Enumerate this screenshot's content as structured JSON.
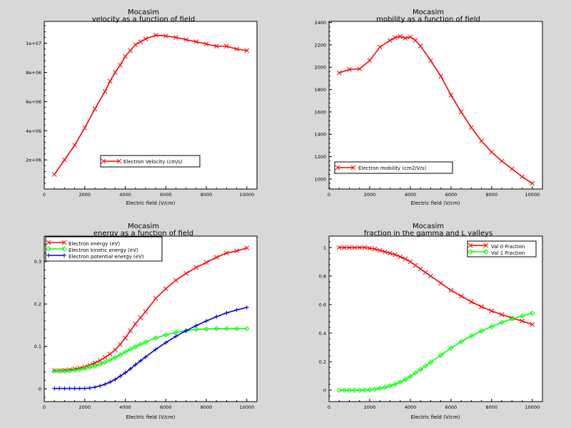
{
  "chart_data": [
    {
      "type": "line",
      "title": "Mocasim",
      "subtitle": "velocity as a function of field",
      "xlabel": "Electric field (V/cm)",
      "ylabel": "",
      "xlim": [
        0,
        10500
      ],
      "ylim": [
        0,
        11500000
      ],
      "xticks": [
        0,
        2000,
        4000,
        6000,
        8000,
        10000
      ],
      "xtick_labels": [
        "0",
        "2000",
        "4000",
        "6000",
        "8000",
        "10000"
      ],
      "yticks": [
        2000000,
        4000000,
        6000000,
        8000000,
        10000000
      ],
      "ytick_labels": [
        "2e+06",
        "4e+06",
        "6e+06",
        "8e+06",
        "1e+07"
      ],
      "grid": false,
      "legend": "inside-lower-center",
      "series": [
        {
          "name": "Electron Velocity (cm/s)",
          "color": "#ff0000",
          "marker": "x",
          "x": [
            500,
            1000,
            1500,
            2000,
            2500,
            3000,
            3250,
            3500,
            3750,
            4000,
            4250,
            4500,
            4750,
            5000,
            5500,
            6000,
            6500,
            7000,
            7500,
            8000,
            8500,
            9000,
            9500,
            10000
          ],
          "values": [
            1000000,
            2000000,
            3000000,
            4200000,
            5500000,
            6700000,
            7400000,
            8000000,
            8500000,
            9100000,
            9500000,
            9900000,
            10100000,
            10300000,
            10550000,
            10500000,
            10400000,
            10250000,
            10100000,
            9950000,
            9800000,
            9800000,
            9600000,
            9500000
          ]
        }
      ]
    },
    {
      "type": "line",
      "title": "Mocasim",
      "subtitle": "mobility as a function of field",
      "xlabel": "Electric field (V/cm)",
      "ylabel": "",
      "xlim": [
        0,
        10500
      ],
      "ylim": [
        910,
        2410
      ],
      "xticks": [
        0,
        2000,
        4000,
        6000,
        8000,
        10000
      ],
      "xtick_labels": [
        "0",
        "2000",
        "4000",
        "6000",
        "8000",
        "10000"
      ],
      "yticks": [
        1000,
        1200,
        1400,
        1600,
        1800,
        2000,
        2200,
        2400
      ],
      "ytick_labels": [
        "1000",
        "1200",
        "1400",
        "1600",
        "1800",
        "2000",
        "2200",
        "2400"
      ],
      "grid": false,
      "legend": "inside-lower-left",
      "series": [
        {
          "name": "Electron mobility (cm2/V/s)",
          "color": "#ff0000",
          "marker": "x",
          "x": [
            500,
            1000,
            1500,
            2000,
            2500,
            3000,
            3250,
            3500,
            3750,
            4000,
            4250,
            4500,
            5000,
            5500,
            6000,
            6500,
            7000,
            7500,
            8000,
            8500,
            9000,
            9500,
            10000
          ],
          "values": [
            1950,
            1980,
            1985,
            2060,
            2180,
            2240,
            2265,
            2275,
            2260,
            2270,
            2240,
            2190,
            2060,
            1920,
            1750,
            1600,
            1460,
            1340,
            1240,
            1160,
            1090,
            1020,
            960
          ]
        }
      ]
    },
    {
      "type": "line",
      "title": "Mocasim",
      "subtitle": "energy as a function of field",
      "xlabel": "Electric field (V/cm)",
      "ylabel": "",
      "xlim": [
        0,
        10500
      ],
      "ylim": [
        -0.03,
        0.36
      ],
      "xticks": [
        0,
        2000,
        4000,
        6000,
        8000,
        10000
      ],
      "xtick_labels": [
        "0",
        "2000",
        "4000",
        "6000",
        "8000",
        "10000"
      ],
      "yticks": [
        0,
        0.1,
        0.2,
        0.3
      ],
      "ytick_labels": [
        "0",
        "0.1",
        "0.2",
        "0.3"
      ],
      "grid": false,
      "legend": "inside-top-left",
      "series": [
        {
          "name": "Electron energy (eV)",
          "color": "#ff0000",
          "marker": "x",
          "x": [
            500,
            750,
            1000,
            1250,
            1500,
            1750,
            2000,
            2250,
            2500,
            2750,
            3000,
            3250,
            3500,
            3750,
            4000,
            4250,
            4500,
            4750,
            5000,
            5500,
            6000,
            6500,
            7000,
            7500,
            8000,
            8500,
            9000,
            9500,
            10000
          ],
          "values": [
            0.043,
            0.043,
            0.044,
            0.045,
            0.047,
            0.049,
            0.052,
            0.056,
            0.061,
            0.067,
            0.074,
            0.082,
            0.092,
            0.105,
            0.12,
            0.137,
            0.153,
            0.168,
            0.182,
            0.213,
            0.236,
            0.256,
            0.272,
            0.286,
            0.298,
            0.31,
            0.32,
            0.325,
            0.332
          ]
        },
        {
          "name": "Electron kinetic energy (eV)",
          "color": "#00ff00",
          "marker": "diamond",
          "x": [
            500,
            750,
            1000,
            1250,
            1500,
            1750,
            2000,
            2250,
            2500,
            2750,
            3000,
            3250,
            3500,
            3750,
            4000,
            4250,
            4500,
            4750,
            5000,
            5500,
            6000,
            6500,
            7000,
            7500,
            8000,
            8500,
            9000,
            9500,
            10000
          ],
          "values": [
            0.042,
            0.042,
            0.042,
            0.043,
            0.044,
            0.046,
            0.048,
            0.051,
            0.054,
            0.058,
            0.063,
            0.068,
            0.074,
            0.08,
            0.087,
            0.093,
            0.099,
            0.105,
            0.11,
            0.12,
            0.127,
            0.133,
            0.137,
            0.14,
            0.141,
            0.142,
            0.142,
            0.142,
            0.142
          ]
        },
        {
          "name": "Electron potential energy (eV)",
          "color": "#0000cc",
          "marker": "plus",
          "x": [
            500,
            750,
            1000,
            1250,
            1500,
            1750,
            2000,
            2250,
            2500,
            2750,
            3000,
            3250,
            3500,
            3750,
            4000,
            4250,
            4500,
            4750,
            5000,
            5500,
            6000,
            6500,
            7000,
            7500,
            8000,
            8500,
            9000,
            9500,
            10000
          ],
          "values": [
            0.001,
            0.001,
            0.001,
            0.001,
            0.001,
            0.001,
            0.001,
            0.002,
            0.004,
            0.007,
            0.011,
            0.016,
            0.022,
            0.03,
            0.038,
            0.047,
            0.057,
            0.066,
            0.075,
            0.093,
            0.109,
            0.124,
            0.137,
            0.149,
            0.16,
            0.17,
            0.179,
            0.186,
            0.192
          ]
        }
      ]
    },
    {
      "type": "line",
      "title": "Mocasim",
      "subtitle": "fraction in the gamma and L valleys",
      "xlabel": "Electric field (V/cm)",
      "ylabel": "",
      "xlim": [
        0,
        10500
      ],
      "ylim": [
        -0.08,
        1.08
      ],
      "xticks": [
        0,
        2000,
        4000,
        6000,
        8000,
        10000
      ],
      "xtick_labels": [
        "0",
        "2000",
        "4000",
        "6000",
        "8000",
        "10000"
      ],
      "yticks": [
        0,
        0.2,
        0.4,
        0.6,
        0.8,
        1
      ],
      "ytick_labels": [
        "0",
        "0.2",
        "0.4",
        "0.6",
        "0.8",
        "1"
      ],
      "grid": false,
      "legend": "inside-top-right",
      "series": [
        {
          "name": "Val 0 Fraction",
          "color": "#ff0000",
          "marker": "x",
          "x": [
            500,
            750,
            1000,
            1250,
            1500,
            1750,
            2000,
            2250,
            2500,
            2750,
            3000,
            3250,
            3500,
            3750,
            4000,
            4250,
            4500,
            4750,
            5000,
            5500,
            6000,
            6500,
            7000,
            7500,
            8000,
            8500,
            9000,
            9500,
            10000
          ],
          "values": [
            1.0,
            1.0,
            1.0,
            1.0,
            1.0,
            1.0,
            0.995,
            0.99,
            0.98,
            0.97,
            0.96,
            0.95,
            0.935,
            0.92,
            0.9,
            0.875,
            0.85,
            0.825,
            0.8,
            0.75,
            0.7,
            0.66,
            0.62,
            0.585,
            0.555,
            0.53,
            0.505,
            0.485,
            0.46
          ]
        },
        {
          "name": "Val 1 Fraction",
          "color": "#00ff00",
          "marker": "diamond",
          "x": [
            500,
            750,
            1000,
            1250,
            1500,
            1750,
            2000,
            2250,
            2500,
            2750,
            3000,
            3250,
            3500,
            3750,
            4000,
            4250,
            4500,
            4750,
            5000,
            5500,
            6000,
            6500,
            7000,
            7500,
            8000,
            8500,
            9000,
            9500,
            10000
          ],
          "values": [
            0.0,
            0.0,
            0.0,
            0.0,
            0.0,
            0.0,
            0.002,
            0.006,
            0.012,
            0.02,
            0.03,
            0.042,
            0.057,
            0.075,
            0.095,
            0.12,
            0.145,
            0.17,
            0.195,
            0.245,
            0.295,
            0.34,
            0.38,
            0.415,
            0.445,
            0.475,
            0.5,
            0.52,
            0.54
          ]
        }
      ]
    }
  ]
}
